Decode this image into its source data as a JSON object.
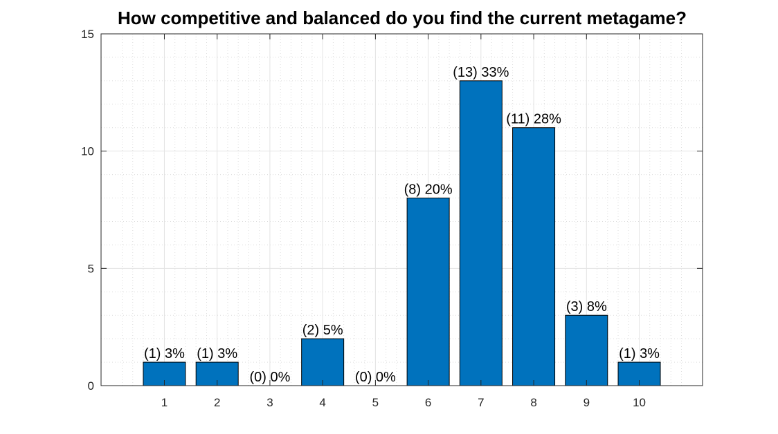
{
  "chart_data": {
    "type": "bar",
    "title": "How competitive and balanced do you find the current metagame?",
    "xlabel": "",
    "ylabel": "",
    "categories": [
      "1",
      "2",
      "3",
      "4",
      "5",
      "6",
      "7",
      "8",
      "9",
      "10"
    ],
    "values": [
      1,
      1,
      0,
      2,
      0,
      8,
      13,
      11,
      3,
      1
    ],
    "data_labels": [
      "(1) 3%",
      "(1) 3%",
      "(0) 0%",
      "(2) 5%",
      "(0) 0%",
      "(8) 20%",
      "(13) 33%",
      "(11) 28%",
      "(3) 8%",
      "(1) 3%"
    ],
    "ylim": [
      0,
      15
    ],
    "xlim": [
      -0.2,
      11.2
    ],
    "yticks": [
      0,
      5,
      10,
      15
    ],
    "grid": true,
    "minor_grid": true,
    "bar_color": "#0072BD"
  }
}
